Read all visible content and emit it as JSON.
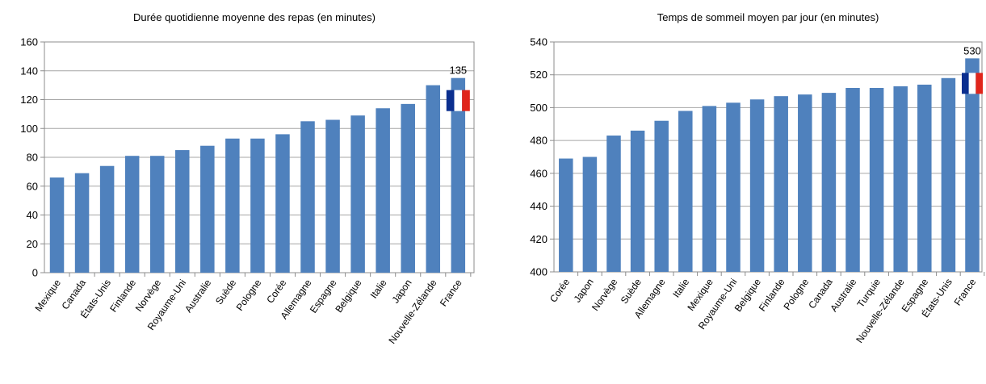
{
  "chart_data": [
    {
      "type": "bar",
      "title": "Durée quotidienne moyenne des repas (en minutes)",
      "xlabel": "",
      "ylabel": "",
      "ylim": [
        0,
        160
      ],
      "yticks": [
        0,
        20,
        40,
        60,
        80,
        100,
        120,
        140,
        160
      ],
      "grid": true,
      "bar_color": "#4f81bd",
      "categories": [
        "Mexique",
        "Canada",
        "États-Unis",
        "Finlande",
        "Norvège",
        "Royaume-Uni",
        "Australie",
        "Suède",
        "Pologne",
        "Corée",
        "Allemagne",
        "Espagne",
        "Belgique",
        "Italie",
        "Japon",
        "Nouvelle-Zélande",
        "France"
      ],
      "values": [
        66,
        69,
        74,
        81,
        81,
        85,
        88,
        93,
        93,
        96,
        105,
        106,
        109,
        114,
        117,
        130,
        135
      ],
      "data_labels": [
        {
          "category": "France",
          "text": "135"
        }
      ],
      "highlight": {
        "category": "France",
        "marker": "french-flag"
      }
    },
    {
      "type": "bar",
      "title": "Temps de sommeil moyen par jour (en minutes)",
      "xlabel": "",
      "ylabel": "",
      "ylim": [
        400,
        540
      ],
      "yticks": [
        400,
        420,
        440,
        460,
        480,
        500,
        520,
        540
      ],
      "grid": true,
      "bar_color": "#4f81bd",
      "categories": [
        "Corée",
        "Japon",
        "Norvège",
        "Suède",
        "Allemagne",
        "Italie",
        "Mexique",
        "Royaume-Uni",
        "Belgique",
        "Finlande",
        "Pologne",
        "Canada",
        "Australie",
        "Turquie",
        "Nouvelle-Zélande",
        "Espagne",
        "États-Unis",
        "France"
      ],
      "values": [
        469,
        470,
        483,
        486,
        492,
        498,
        501,
        503,
        505,
        507,
        508,
        509,
        512,
        512,
        513,
        514,
        518,
        530
      ],
      "data_labels": [
        {
          "category": "France",
          "text": "530"
        }
      ],
      "highlight": {
        "category": "France",
        "marker": "french-flag"
      }
    }
  ]
}
